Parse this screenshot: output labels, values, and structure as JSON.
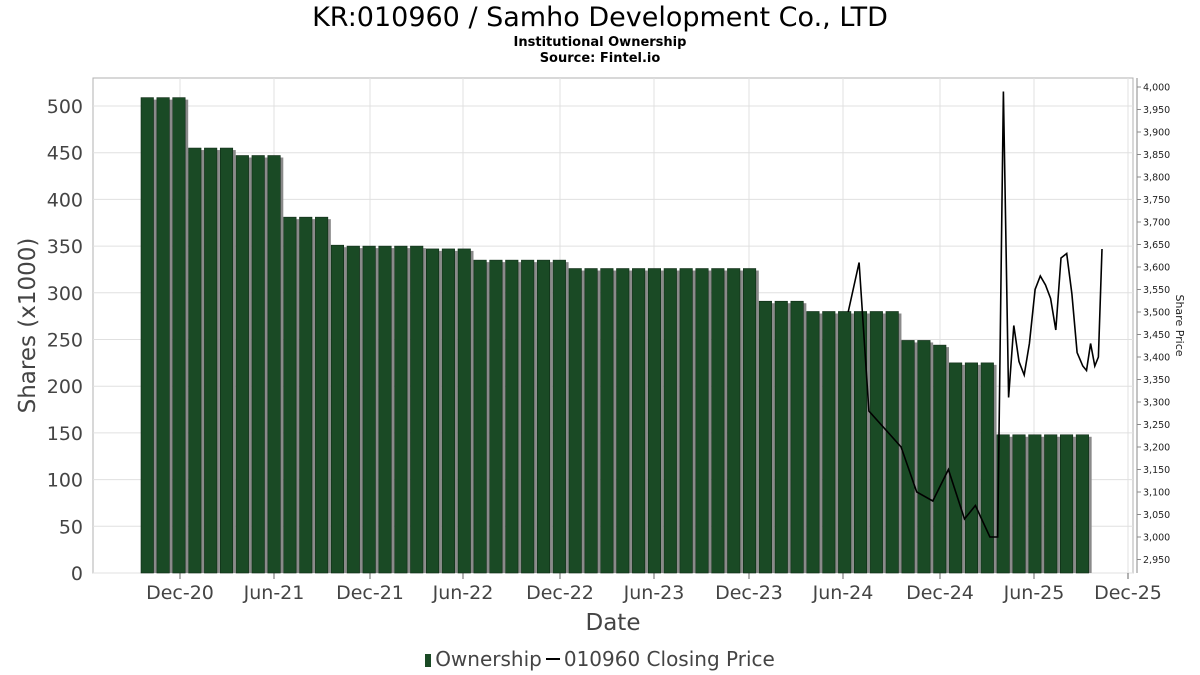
{
  "header": {
    "title": "KR:010960 / Samho Development Co., LTD",
    "subtitle": "Institutional Ownership",
    "source": "Source: Fintel.io"
  },
  "legend": {
    "ownership": "Ownership",
    "price": "010960 Closing Price"
  },
  "colors": {
    "bar": "#1a4a25",
    "bar_shadow": "#8a8a8a",
    "line": "#000000",
    "grid": "#e0e0e0"
  },
  "chart_data": {
    "type": "bar",
    "title": "KR:010960 / Samho Development Co., LTD",
    "xlabel": "Date",
    "ylabel": "Shares (x1000)",
    "y2label": "Share Price",
    "ylim": [
      0,
      530
    ],
    "y2lim": [
      2920,
      4020
    ],
    "y_ticks": [
      "0",
      "50",
      "100",
      "150",
      "200",
      "250",
      "300",
      "350",
      "400",
      "450",
      "500"
    ],
    "y2_ticks": [
      "2,950",
      "3,000",
      "3,050",
      "3,100",
      "3,150",
      "3,200",
      "3,250",
      "3,300",
      "3,350",
      "3,400",
      "3,450",
      "3,500",
      "3,550",
      "3,600",
      "3,650",
      "3,700",
      "3,750",
      "3,800",
      "3,850",
      "3,900",
      "3,950",
      "4,000"
    ],
    "x_ticks": [
      "Dec-20",
      "Jun-21",
      "Dec-21",
      "Jun-22",
      "Dec-22",
      "Jun-23",
      "Dec-23",
      "Jun-24",
      "Dec-24",
      "Jun-25",
      "Dec-25"
    ],
    "grid": true,
    "legend_position": "bottom",
    "series": [
      {
        "name": "Ownership",
        "type": "bar",
        "values": [
          509,
          509,
          509,
          455,
          455,
          455,
          447,
          447,
          447,
          381,
          381,
          381,
          351,
          350,
          350,
          350,
          350,
          350,
          347,
          347,
          347,
          335,
          335,
          335,
          335,
          335,
          335,
          326,
          326,
          326,
          326,
          326,
          326,
          326,
          326,
          326,
          326,
          326,
          326,
          291,
          291,
          291,
          280,
          280,
          280,
          280,
          280,
          280,
          249,
          249,
          244,
          225,
          225,
          225,
          148,
          148,
          148,
          148,
          148,
          148
        ]
      },
      {
        "name": "010960 Closing Price",
        "type": "line",
        "points": [
          {
            "x": "2024-06-10",
            "y": 3500
          },
          {
            "x": "2024-07-01",
            "y": 3610
          },
          {
            "x": "2024-07-20",
            "y": 3280
          },
          {
            "x": "2024-08-20",
            "y": 3240
          },
          {
            "x": "2024-09-20",
            "y": 3200
          },
          {
            "x": "2024-10-20",
            "y": 3100
          },
          {
            "x": "2024-11-20",
            "y": 3080
          },
          {
            "x": "2024-12-20",
            "y": 3150
          },
          {
            "x": "2025-01-20",
            "y": 3040
          },
          {
            "x": "2025-02-10",
            "y": 3070
          },
          {
            "x": "2025-03-10",
            "y": 3000
          },
          {
            "x": "2025-03-25",
            "y": 3000
          },
          {
            "x": "2025-04-05",
            "y": 3990
          },
          {
            "x": "2025-04-15",
            "y": 3310
          },
          {
            "x": "2025-04-25",
            "y": 3470
          },
          {
            "x": "2025-05-05",
            "y": 3390
          },
          {
            "x": "2025-05-15",
            "y": 3360
          },
          {
            "x": "2025-05-25",
            "y": 3430
          },
          {
            "x": "2025-06-05",
            "y": 3550
          },
          {
            "x": "2025-06-15",
            "y": 3580
          },
          {
            "x": "2025-06-25",
            "y": 3560
          },
          {
            "x": "2025-07-05",
            "y": 3530
          },
          {
            "x": "2025-07-15",
            "y": 3460
          },
          {
            "x": "2025-07-25",
            "y": 3620
          },
          {
            "x": "2025-08-05",
            "y": 3630
          },
          {
            "x": "2025-08-15",
            "y": 3540
          },
          {
            "x": "2025-08-25",
            "y": 3410
          },
          {
            "x": "2025-09-05",
            "y": 3380
          },
          {
            "x": "2025-09-12",
            "y": 3370
          },
          {
            "x": "2025-09-20",
            "y": 3430
          },
          {
            "x": "2025-09-28",
            "y": 3380
          },
          {
            "x": "2025-10-05",
            "y": 3400
          },
          {
            "x": "2025-10-12",
            "y": 3640
          }
        ]
      }
    ]
  }
}
